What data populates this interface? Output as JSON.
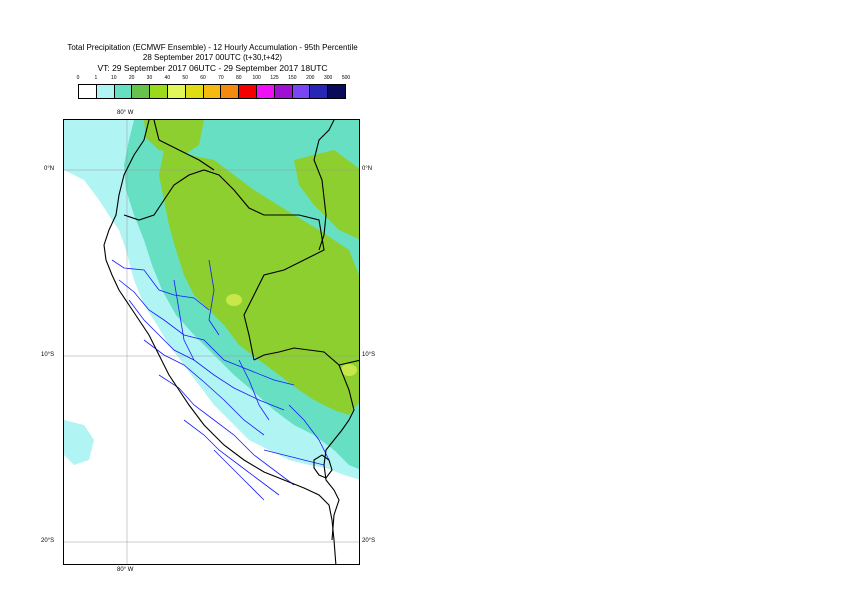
{
  "title": {
    "line1": "Total Precipitation (ECMWF Ensemble) - 12 Hourly Accumulation - 95th Percentile",
    "line2": "28 September 2017 00UTC (t+30,t+42)",
    "line3": "VT: 29 September 2017 06UTC - 29 September 2017 18UTC"
  },
  "legend": {
    "thresholds": [
      "0",
      "1",
      "10",
      "20",
      "30",
      "40",
      "50",
      "60",
      "70",
      "80",
      "100",
      "125",
      "150",
      "200",
      "300",
      "500"
    ],
    "colors": [
      "#ffffff",
      "#b0f4f4",
      "#66dfc2",
      "#66c24c",
      "#9bd91b",
      "#e2f55a",
      "#dedc12",
      "#f4ba10",
      "#f48a10",
      "#f40000",
      "#f010f4",
      "#a010d4",
      "#7a46f4",
      "#2826b4",
      "#0a0a5a"
    ]
  },
  "map": {
    "lon_labels": {
      "top": "80° W",
      "bottom": "80° W"
    },
    "lat_labels": [
      {
        "left": "0°N",
        "right": "0°N"
      },
      {
        "left": "10°S",
        "right": "10°S"
      },
      {
        "left": "20°S",
        "right": "20°S"
      }
    ],
    "colors": {
      "ocean": "#ffffff",
      "light_rain": "#b0f4f4",
      "moderate_rain": "#66dfc2",
      "heavy_rain": "#8ccf2e",
      "peak_rain": "#c8e84a",
      "coastline": "#000000",
      "region_borders": "#1a1aff"
    }
  }
}
